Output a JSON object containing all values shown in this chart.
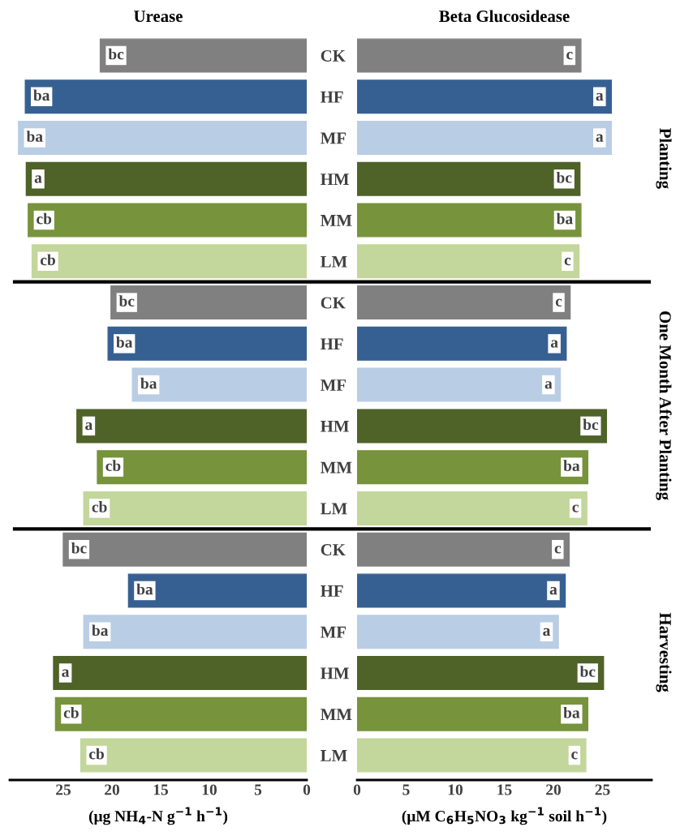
{
  "chart_data": [
    {
      "type": "bar",
      "orientation": "horizontal",
      "title": "Urease",
      "categories": [
        "CK",
        "HF",
        "MF",
        "HM",
        "MM",
        "LM",
        "CK",
        "HF",
        "MF",
        "HM",
        "MM",
        "LM",
        "CK",
        "HF",
        "MF",
        "HM",
        "MM",
        "LM"
      ],
      "colors": [
        "#808080",
        "#376092",
        "#b9cde5",
        "#4f6228",
        "#77933c",
        "#c3d69b",
        "#808080",
        "#376092",
        "#b9cde5",
        "#4f6228",
        "#77933c",
        "#c3d69b",
        "#808080",
        "#376092",
        "#b9cde5",
        "#4f6228",
        "#77933c",
        "#c3d69b"
      ],
      "values": [
        21.2,
        28.9,
        29.6,
        28.8,
        28.6,
        28.2,
        20.1,
        20.4,
        17.9,
        23.6,
        21.5,
        22.9,
        25.0,
        18.3,
        22.9,
        26.0,
        25.8,
        23.2
      ],
      "value_labels": [
        "bc",
        "ba",
        "ba",
        "a",
        "cb",
        "cb",
        "bc",
        "ba",
        "ba",
        "a",
        "cb",
        "cb",
        "bc",
        "ba",
        "ba",
        "a",
        "cb",
        "cb"
      ],
      "xlim": [
        30.5,
        0
      ],
      "xticks": [
        25,
        20,
        15,
        10,
        5,
        0
      ],
      "xlabel": "(μg NH$_{4}$-N g$^{−1}$ h$^{−1}$)"
    },
    {
      "type": "bar",
      "orientation": "horizontal",
      "title": "Beta Glucosidease",
      "categories": [
        null,
        null,
        null,
        null,
        null,
        null,
        null,
        null,
        null,
        null,
        null,
        null,
        null,
        null,
        null,
        null,
        null,
        null
      ],
      "colors": [
        "#808080",
        "#376092",
        "#b9cde5",
        "#4f6228",
        "#77933c",
        "#c3d69b",
        "#808080",
        "#376092",
        "#b9cde5",
        "#4f6228",
        "#77933c",
        "#c3d69b",
        "#808080",
        "#376092",
        "#b9cde5",
        "#4f6228",
        "#77933c",
        "#c3d69b"
      ],
      "values": [
        22.8,
        25.9,
        25.9,
        22.7,
        22.8,
        22.6,
        21.7,
        21.3,
        20.7,
        25.4,
        23.5,
        23.4,
        21.6,
        21.2,
        20.5,
        25.1,
        23.5,
        23.3
      ],
      "value_labels": [
        "c",
        "a",
        "a",
        "bc",
        "ba",
        "c",
        "c",
        "a",
        "a",
        "bc",
        "ba",
        "c",
        "c",
        "a",
        "a",
        "bc",
        "ba",
        "c"
      ],
      "xlim": [
        0,
        30
      ],
      "xticks": [
        0,
        5,
        10,
        15,
        20,
        25
      ],
      "xlabel": "(μM C$_{6}$H$_{5}$NO$_{3}$ kg$^{−1}$ soil h$^{−1}$)",
      "annotations": [
        "Planting",
        "One Month After Planting",
        "Harvesting"
      ]
    }
  ]
}
